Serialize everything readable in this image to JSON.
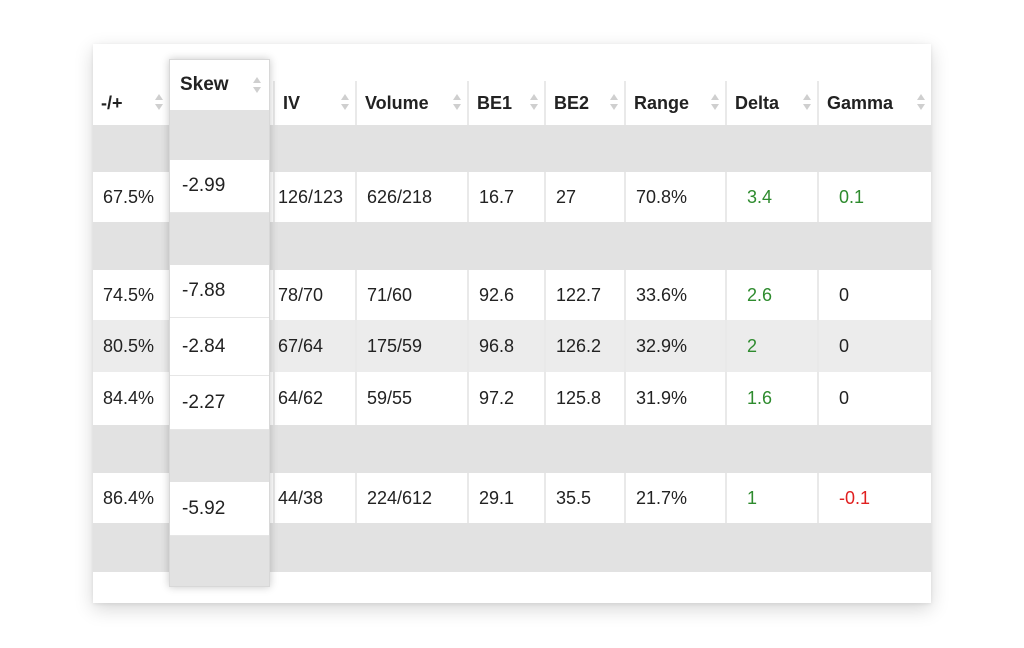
{
  "columns": [
    {
      "label": "-/+",
      "sortable": true
    },
    {
      "label": "Skew",
      "sortable": true
    },
    {
      "label": "IV",
      "sortable": true
    },
    {
      "label": "Volume",
      "sortable": true
    },
    {
      "label": "BE1",
      "sortable": true
    },
    {
      "label": "BE2",
      "sortable": true
    },
    {
      "label": "Range",
      "sortable": true
    },
    {
      "label": "Delta",
      "sortable": true
    },
    {
      "label": "Gamma",
      "sortable": true
    }
  ],
  "rows": [
    {
      "pm": "67.5%",
      "skew": "-2.99",
      "iv": "126/123",
      "volume": "626/218",
      "be1": "16.7",
      "be2": "27",
      "range": "70.8%",
      "delta": "3.4",
      "gamma": "0.1"
    },
    {
      "pm": "74.5%",
      "skew": "-7.88",
      "iv": "78/70",
      "volume": "71/60",
      "be1": "92.6",
      "be2": "122.7",
      "range": "33.6%",
      "delta": "2.6",
      "gamma": "0"
    },
    {
      "pm": "80.5%",
      "skew": "-2.84",
      "iv": "67/64",
      "volume": "175/59",
      "be1": "96.8",
      "be2": "126.2",
      "range": "32.9%",
      "delta": "2",
      "gamma": "0"
    },
    {
      "pm": "84.4%",
      "skew": "-2.27",
      "iv": "64/62",
      "volume": "59/55",
      "be1": "97.2",
      "be2": "125.8",
      "range": "31.9%",
      "delta": "1.6",
      "gamma": "0"
    },
    {
      "pm": "86.4%",
      "skew": "-5.92",
      "iv": "44/38",
      "volume": "224/612",
      "be1": "29.1",
      "be2": "35.5",
      "range": "21.7%",
      "delta": "1",
      "gamma": "-0.1"
    }
  ],
  "colors": {
    "positive": "#2e8b2e",
    "negative": "#e02020",
    "highlight_row": "#ececec"
  },
  "icons": {
    "sort": "sort-updown-icon"
  }
}
